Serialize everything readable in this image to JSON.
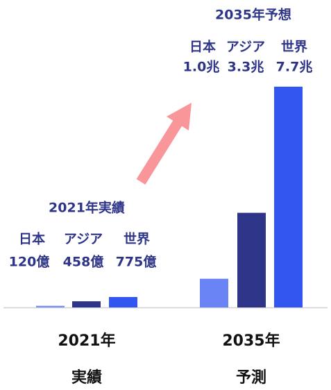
{
  "chart_data": [
    {
      "type": "bar",
      "title": "2021年実績",
      "categories": [
        "日本",
        "アジア",
        "世界"
      ],
      "values": [
        120,
        458,
        775
      ],
      "value_labels": [
        "120億",
        "458億",
        "775億"
      ],
      "colors": [
        "#7a8ff2",
        "#2e3589",
        "#3355f0"
      ],
      "ylim": [
        0,
        17567
      ],
      "xlabel_lines": [
        "2021年",
        "実績"
      ]
    },
    {
      "type": "bar",
      "title": "2035年予想",
      "categories": [
        "日本",
        "アジア",
        "世界"
      ],
      "values": [
        1.0,
        3.3,
        7.7
      ],
      "value_labels": [
        "1.0兆",
        "3.3兆",
        "7.7兆"
      ],
      "colors": [
        "#6b84f5",
        "#2e3589",
        "#3355f0"
      ],
      "ylim": [
        0,
        8.23
      ],
      "xlabel_lines": [
        "2035年",
        "予測"
      ]
    }
  ]
}
